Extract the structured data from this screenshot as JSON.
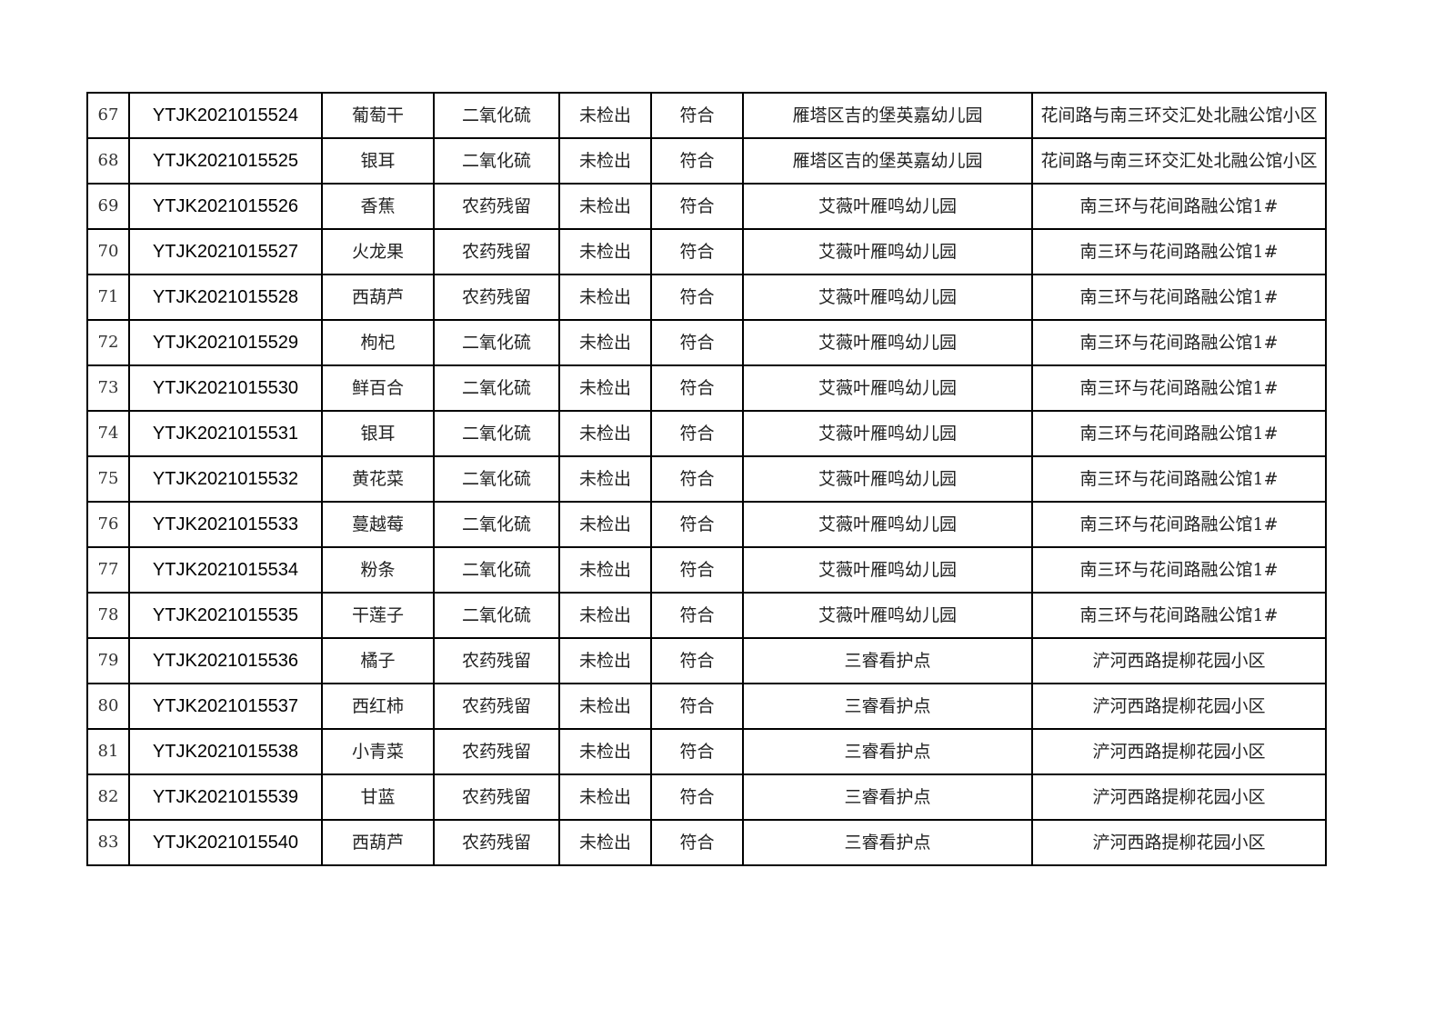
{
  "rows": [
    {
      "no": "67",
      "code": "YTJK2021015524",
      "sample": "葡萄干",
      "item": "二氧化硫",
      "result": "未检出",
      "verdict": "符合",
      "unit": "雁塔区吉的堡英嘉幼儿园",
      "address": "花间路与南三环交汇处北融公馆小区"
    },
    {
      "no": "68",
      "code": "YTJK2021015525",
      "sample": "银耳",
      "item": "二氧化硫",
      "result": "未检出",
      "verdict": "符合",
      "unit": "雁塔区吉的堡英嘉幼儿园",
      "address": "花间路与南三环交汇处北融公馆小区"
    },
    {
      "no": "69",
      "code": "YTJK2021015526",
      "sample": "香蕉",
      "item": "农药残留",
      "result": "未检出",
      "verdict": "符合",
      "unit": "艾薇叶雁鸣幼儿园",
      "address": "南三环与花间路融公馆1#"
    },
    {
      "no": "70",
      "code": "YTJK2021015527",
      "sample": "火龙果",
      "item": "农药残留",
      "result": "未检出",
      "verdict": "符合",
      "unit": "艾薇叶雁鸣幼儿园",
      "address": "南三环与花间路融公馆1#"
    },
    {
      "no": "71",
      "code": "YTJK2021015528",
      "sample": "西葫芦",
      "item": "农药残留",
      "result": "未检出",
      "verdict": "符合",
      "unit": "艾薇叶雁鸣幼儿园",
      "address": "南三环与花间路融公馆1#"
    },
    {
      "no": "72",
      "code": "YTJK2021015529",
      "sample": "枸杞",
      "item": "二氧化硫",
      "result": "未检出",
      "verdict": "符合",
      "unit": "艾薇叶雁鸣幼儿园",
      "address": "南三环与花间路融公馆1#"
    },
    {
      "no": "73",
      "code": "YTJK2021015530",
      "sample": "鲜百合",
      "item": "二氧化硫",
      "result": "未检出",
      "verdict": "符合",
      "unit": "艾薇叶雁鸣幼儿园",
      "address": "南三环与花间路融公馆1#"
    },
    {
      "no": "74",
      "code": "YTJK2021015531",
      "sample": "银耳",
      "item": "二氧化硫",
      "result": "未检出",
      "verdict": "符合",
      "unit": "艾薇叶雁鸣幼儿园",
      "address": "南三环与花间路融公馆1#"
    },
    {
      "no": "75",
      "code": "YTJK2021015532",
      "sample": "黄花菜",
      "item": "二氧化硫",
      "result": "未检出",
      "verdict": "符合",
      "unit": "艾薇叶雁鸣幼儿园",
      "address": "南三环与花间路融公馆1#"
    },
    {
      "no": "76",
      "code": "YTJK2021015533",
      "sample": "蔓越莓",
      "item": "二氧化硫",
      "result": "未检出",
      "verdict": "符合",
      "unit": "艾薇叶雁鸣幼儿园",
      "address": "南三环与花间路融公馆1#"
    },
    {
      "no": "77",
      "code": "YTJK2021015534",
      "sample": "粉条",
      "item": "二氧化硫",
      "result": "未检出",
      "verdict": "符合",
      "unit": "艾薇叶雁鸣幼儿园",
      "address": "南三环与花间路融公馆1#"
    },
    {
      "no": "78",
      "code": "YTJK2021015535",
      "sample": "干莲子",
      "item": "二氧化硫",
      "result": "未检出",
      "verdict": "符合",
      "unit": "艾薇叶雁鸣幼儿园",
      "address": "南三环与花间路融公馆1#"
    },
    {
      "no": "79",
      "code": "YTJK2021015536",
      "sample": "橘子",
      "item": "农药残留",
      "result": "未检出",
      "verdict": "符合",
      "unit": "三睿看护点",
      "address": "浐河西路提柳花园小区"
    },
    {
      "no": "80",
      "code": "YTJK2021015537",
      "sample": "西红柿",
      "item": "农药残留",
      "result": "未检出",
      "verdict": "符合",
      "unit": "三睿看护点",
      "address": "浐河西路提柳花园小区"
    },
    {
      "no": "81",
      "code": "YTJK2021015538",
      "sample": "小青菜",
      "item": "农药残留",
      "result": "未检出",
      "verdict": "符合",
      "unit": "三睿看护点",
      "address": "浐河西路提柳花园小区"
    },
    {
      "no": "82",
      "code": "YTJK2021015539",
      "sample": "甘蓝",
      "item": "农药残留",
      "result": "未检出",
      "verdict": "符合",
      "unit": "三睿看护点",
      "address": "浐河西路提柳花园小区"
    },
    {
      "no": "83",
      "code": "YTJK2021015540",
      "sample": "西葫芦",
      "item": "农药残留",
      "result": "未检出",
      "verdict": "符合",
      "unit": "三睿看护点",
      "address": "浐河西路提柳花园小区"
    }
  ]
}
